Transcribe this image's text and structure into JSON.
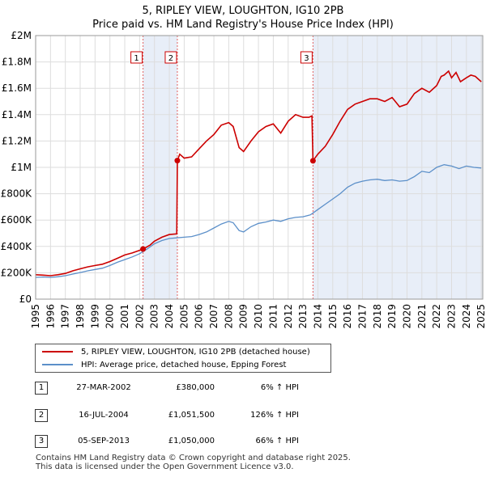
{
  "chart_data": {
    "type": "line",
    "title": "5, RIPLEY VIEW, LOUGHTON, IG10 2PB",
    "subtitle": "Price paid vs. HM Land Registry's House Price Index (HPI)",
    "xlim": [
      1995,
      2025.1
    ],
    "ylim": [
      0,
      2000000
    ],
    "x_ticks": [
      1995,
      1996,
      1997,
      1998,
      1999,
      2000,
      2001,
      2002,
      2003,
      2004,
      2005,
      2006,
      2007,
      2008,
      2009,
      2010,
      2011,
      2012,
      2013,
      2014,
      2015,
      2016,
      2017,
      2018,
      2019,
      2020,
      2021,
      2022,
      2023,
      2024,
      2025
    ],
    "y_ticks": [
      {
        "value": 0,
        "label": "£0"
      },
      {
        "value": 200000,
        "label": "£200K"
      },
      {
        "value": 400000,
        "label": "£400K"
      },
      {
        "value": 600000,
        "label": "£600K"
      },
      {
        "value": 800000,
        "label": "£800K"
      },
      {
        "value": 1000000,
        "label": "£1M"
      },
      {
        "value": 1200000,
        "label": "£1.2M"
      },
      {
        "value": 1400000,
        "label": "£1.4M"
      },
      {
        "value": 1600000,
        "label": "£1.6M"
      },
      {
        "value": 1800000,
        "label": "£1.8M"
      },
      {
        "value": 2000000,
        "label": "£2M"
      }
    ],
    "grid": true,
    "series": [
      {
        "name": "5, RIPLEY VIEW, LOUGHTON, IG10 2PB (detached house)",
        "color": "#cc0000",
        "x": [
          1995,
          1995.5,
          1996,
          1996.5,
          1997,
          1997.5,
          1998,
          1998.5,
          1999,
          1999.5,
          2000,
          2000.5,
          2001,
          2001.5,
          2002.23,
          2002.7,
          2003,
          2003.5,
          2004,
          2004.5,
          2004.54,
          2004.7,
          2005,
          2005.5,
          2006,
          2006.5,
          2007,
          2007.5,
          2008,
          2008.3,
          2008.7,
          2009,
          2009.5,
          2010,
          2010.5,
          2011,
          2011.5,
          2012,
          2012.5,
          2013,
          2013.4,
          2013.6,
          2013.67,
          2014,
          2014.5,
          2015,
          2015.5,
          2016,
          2016.5,
          2017,
          2017.5,
          2018,
          2018.5,
          2019,
          2019.5,
          2020,
          2020.5,
          2021,
          2021.5,
          2022,
          2022.3,
          2022.5,
          2022.8,
          2023,
          2023.3,
          2023.6,
          2024,
          2024.3,
          2024.6,
          2025
        ],
        "y": [
          185000,
          182000,
          178000,
          185000,
          195000,
          215000,
          230000,
          245000,
          255000,
          265000,
          285000,
          310000,
          335000,
          350000,
          380000,
          410000,
          440000,
          470000,
          490000,
          495000,
          1051500,
          1100000,
          1070000,
          1080000,
          1140000,
          1200000,
          1250000,
          1320000,
          1340000,
          1310000,
          1150000,
          1120000,
          1200000,
          1270000,
          1310000,
          1330000,
          1260000,
          1350000,
          1400000,
          1380000,
          1380000,
          1390000,
          1050000,
          1100000,
          1160000,
          1250000,
          1350000,
          1440000,
          1480000,
          1500000,
          1520000,
          1520000,
          1500000,
          1530000,
          1460000,
          1480000,
          1560000,
          1600000,
          1570000,
          1620000,
          1690000,
          1700000,
          1730000,
          1680000,
          1720000,
          1650000,
          1680000,
          1700000,
          1690000,
          1650000
        ]
      },
      {
        "name": "HPI: Average price, detached house, Epping Forest",
        "color": "#5b8fc9",
        "x": [
          1995,
          1995.5,
          1996,
          1996.5,
          1997,
          1997.5,
          1998,
          1998.5,
          1999,
          1999.5,
          2000,
          2000.5,
          2001,
          2001.5,
          2002,
          2002.5,
          2003,
          2003.5,
          2004,
          2004.5,
          2005,
          2005.5,
          2006,
          2006.5,
          2007,
          2007.5,
          2008,
          2008.3,
          2008.7,
          2009,
          2009.5,
          2010,
          2010.5,
          2011,
          2011.5,
          2012,
          2012.5,
          2013,
          2013.5,
          2014,
          2014.5,
          2015,
          2015.5,
          2016,
          2016.5,
          2017,
          2017.5,
          2018,
          2018.5,
          2019,
          2019.5,
          2020,
          2020.5,
          2021,
          2021.5,
          2022,
          2022.5,
          2023,
          2023.5,
          2024,
          2024.5,
          2025
        ],
        "y": [
          165000,
          168000,
          165000,
          170000,
          178000,
          190000,
          202000,
          215000,
          225000,
          235000,
          255000,
          280000,
          300000,
          320000,
          345000,
          380000,
          420000,
          445000,
          460000,
          465000,
          470000,
          475000,
          490000,
          510000,
          540000,
          570000,
          590000,
          580000,
          520000,
          510000,
          550000,
          575000,
          585000,
          600000,
          590000,
          610000,
          620000,
          625000,
          640000,
          680000,
          720000,
          760000,
          800000,
          850000,
          880000,
          895000,
          905000,
          910000,
          900000,
          905000,
          895000,
          900000,
          930000,
          970000,
          960000,
          1000000,
          1020000,
          1010000,
          990000,
          1010000,
          1000000,
          995000
        ]
      }
    ],
    "transactions": [
      {
        "num": "1",
        "x": 2002.23,
        "y": 380000
      },
      {
        "num": "2",
        "x": 2004.54,
        "y": 1051500
      },
      {
        "num": "3",
        "x": 2013.67,
        "y": 1050000
      }
    ],
    "legend": [
      {
        "label": "5, RIPLEY VIEW, LOUGHTON, IG10 2PB (detached house)",
        "color": "#cc0000"
      },
      {
        "label": "HPI: Average price, detached house, Epping Forest",
        "color": "#5b8fc9"
      }
    ]
  },
  "sales": [
    {
      "num": "1",
      "date": "27-MAR-2002",
      "price": "£380,000",
      "hpi": "6% ↑ HPI"
    },
    {
      "num": "2",
      "date": "16-JUL-2004",
      "price": "£1,051,500",
      "hpi": "126% ↑ HPI"
    },
    {
      "num": "3",
      "date": "05-SEP-2013",
      "price": "£1,050,000",
      "hpi": "66% ↑ HPI"
    }
  ],
  "footer": {
    "line1": "Contains HM Land Registry data © Crown copyright and database right 2025.",
    "line2": "This data is licensed under the Open Government Licence v3.0."
  }
}
